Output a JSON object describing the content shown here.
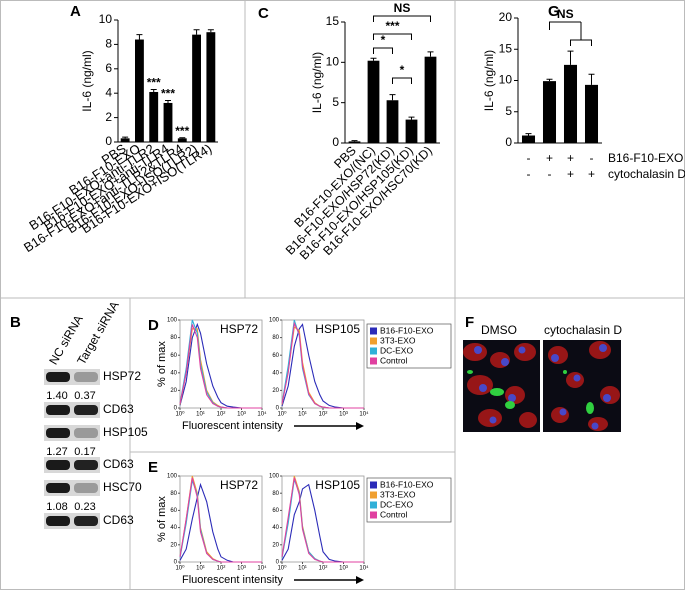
{
  "chart_data": [
    {
      "type": "bar",
      "panel": "A",
      "ylabel": "IL-6 (ng/ml)",
      "categories": [
        "PBS",
        "B16-F10-EXO",
        "B16-F10-EXO+anti-TLR2",
        "B16-F10-EXO+anti-TLR4",
        "B16-F10-EXO+anti-TLR2&TLR4",
        "B16-F10-EXO+ISO(TLR2)",
        "B16-F10-EXO+ISO(TLR4)"
      ],
      "values": [
        0.3,
        8.4,
        4.1,
        3.2,
        0.3,
        8.8,
        9.0
      ],
      "errors": [
        0.1,
        0.4,
        0.2,
        0.2,
        0.05,
        0.4,
        0.2
      ],
      "ylim": [
        0,
        10
      ],
      "yticks": [
        0,
        2,
        4,
        6,
        8,
        10
      ],
      "color": "#000000",
      "annotations": [
        {
          "text": "***",
          "index": 2
        },
        {
          "text": "***",
          "index": 3
        },
        {
          "text": "***",
          "index": 4
        }
      ]
    },
    {
      "type": "bar",
      "panel": "C",
      "ylabel": "IL-6 (ng/ml)",
      "categories": [
        "PBS",
        "B16-F10-EXO/(NC)",
        "B16-F10-EXO/HSP72(KD)",
        "B16-F10-EXO/HSP105(KD)",
        "B16-F10-EXO/HSC70(KD)"
      ],
      "values": [
        0.2,
        10.2,
        5.3,
        2.9,
        10.7
      ],
      "errors": [
        0.1,
        0.3,
        0.7,
        0.3,
        0.6
      ],
      "ylim": [
        0,
        15
      ],
      "yticks": [
        0,
        5,
        10,
        15
      ],
      "color": "#000000",
      "brackets": [
        {
          "from": 1,
          "to": 4,
          "label": "NS"
        },
        {
          "from": 1,
          "to": 3,
          "label": "***"
        },
        {
          "from": 1,
          "to": 2,
          "label": "*"
        },
        {
          "from": 2,
          "to": 3,
          "label": "*"
        }
      ]
    },
    {
      "type": "bar",
      "panel": "G",
      "ylabel": "IL-6 (ng/ml)",
      "values": [
        1.2,
        9.9,
        12.5,
        9.3
      ],
      "errors": [
        0.3,
        0.3,
        2.2,
        1.7
      ],
      "ylim": [
        0,
        20
      ],
      "yticks": [
        0,
        5,
        10,
        15,
        20
      ],
      "color": "#000000",
      "brackets": [
        {
          "from": 1,
          "to": [
            2,
            3
          ],
          "label": "NS"
        }
      ],
      "conditions": [
        {
          "label": "B16-F10-EXO",
          "signs": [
            "-",
            "+",
            "+",
            "-"
          ]
        },
        {
          "label": "cytochalasin D",
          "signs": [
            "-",
            "-",
            "+",
            "+"
          ]
        }
      ]
    },
    {
      "type": "flow",
      "panel": "D",
      "ylabel": "% of max",
      "xlabel": "Fluorescent intensity",
      "x": [
        1,
        2,
        4,
        7,
        10,
        20,
        40,
        70,
        100,
        200,
        400,
        1000,
        10000
      ],
      "xlim": [
        1,
        10000
      ],
      "log_x": true,
      "xticks": [
        {
          "value": 1,
          "label": "10⁰"
        },
        {
          "value": 10,
          "label": "10¹"
        },
        {
          "value": 100,
          "label": "10²"
        },
        {
          "value": 1000,
          "label": "10³"
        },
        {
          "value": 10000,
          "label": "10⁴"
        }
      ],
      "ylim": [
        0,
        100
      ],
      "yticks": [
        0,
        20,
        40,
        60,
        80,
        100
      ],
      "series": [
        {
          "name": "B16-F10-EXO",
          "color": "#2b2bb8"
        },
        {
          "name": "3T3-EXO",
          "color": "#f0a030"
        },
        {
          "name": "DC-EXO",
          "color": "#30b0d8"
        },
        {
          "name": "Control",
          "color": "#e040a0"
        }
      ],
      "subplots": [
        {
          "title": "HSP72",
          "values": [
            [
              3,
              30,
              80,
              95,
              85,
              50,
              25,
              12,
              6,
              2,
              1,
              0,
              0
            ],
            [
              4,
              40,
              90,
              90,
              55,
              20,
              7,
              3,
              1,
              0,
              0,
              0,
              0
            ],
            [
              5,
              45,
              100,
              85,
              50,
              18,
              6,
              2,
              1,
              0,
              0,
              0,
              0
            ],
            [
              5,
              40,
              95,
              80,
              45,
              15,
              5,
              2,
              1,
              0,
              0,
              0,
              0
            ]
          ]
        },
        {
          "title": "HSP105",
          "values": [
            [
              2,
              25,
              70,
              90,
              95,
              60,
              30,
              15,
              8,
              3,
              1,
              0,
              0
            ],
            [
              4,
              42,
              92,
              88,
              52,
              18,
              6,
              2,
              1,
              0,
              0,
              0,
              0
            ],
            [
              5,
              48,
              100,
              82,
              45,
              15,
              5,
              2,
              1,
              0,
              0,
              0,
              0
            ],
            [
              5,
              40,
              96,
              84,
              48,
              16,
              5,
              2,
              1,
              0,
              0,
              0,
              0
            ]
          ]
        }
      ]
    },
    {
      "type": "flow",
      "panel": "E",
      "ylabel": "% of max",
      "xlabel": "Fluorescent intensity",
      "x": [
        1,
        2,
        4,
        7,
        10,
        20,
        40,
        70,
        100,
        200,
        400,
        1000,
        10000
      ],
      "xlim": [
        1,
        10000
      ],
      "log_x": true,
      "xticks": [
        {
          "value": 1,
          "label": "10⁰"
        },
        {
          "value": 10,
          "label": "10¹"
        },
        {
          "value": 100,
          "label": "10²"
        },
        {
          "value": 1000,
          "label": "10³"
        },
        {
          "value": 10000,
          "label": "10⁴"
        }
      ],
      "ylim": [
        0,
        100
      ],
      "yticks": [
        0,
        20,
        40,
        60,
        80,
        100
      ],
      "series": [
        {
          "name": "B16-F10-EXO",
          "color": "#2b2bb8"
        },
        {
          "name": "3T3-EXO",
          "color": "#f0a030"
        },
        {
          "name": "DC-EXO",
          "color": "#30b0d8"
        },
        {
          "name": "Control",
          "color": "#e040a0"
        }
      ],
      "subplots": [
        {
          "title": "HSP72",
          "values": [
            [
              2,
              15,
              50,
              75,
              90,
              70,
              35,
              15,
              6,
              2,
              0,
              0,
              0
            ],
            [
              5,
              50,
              100,
              80,
              40,
              12,
              4,
              1,
              0,
              0,
              0,
              0,
              0
            ],
            [
              5,
              45,
              95,
              78,
              38,
              10,
              3,
              1,
              0,
              0,
              0,
              0,
              0
            ],
            [
              6,
              50,
              98,
              75,
              35,
              10,
              3,
              1,
              0,
              0,
              0,
              0,
              0
            ]
          ]
        },
        {
          "title": "HSP105",
          "values": [
            [
              2,
              15,
              55,
              70,
              85,
              90,
              60,
              30,
              12,
              3,
              1,
              0,
              0
            ],
            [
              5,
              48,
              100,
              82,
              42,
              12,
              4,
              1,
              0,
              0,
              0,
              0,
              0
            ],
            [
              5,
              45,
              96,
              80,
              40,
              12,
              4,
              1,
              0,
              0,
              0,
              0,
              0
            ],
            [
              6,
              52,
              98,
              78,
              38,
              10,
              3,
              1,
              0,
              0,
              0,
              0,
              0
            ]
          ]
        }
      ]
    }
  ],
  "blot": {
    "panel": "B",
    "columns": [
      "NC siRNA",
      "Target siRNA"
    ],
    "rows": [
      {
        "label": "HSP72",
        "ratios": [
          "1.40",
          "0.37"
        ]
      },
      {
        "label": "CD63"
      },
      {
        "label": "HSP105",
        "ratios": [
          "1.27",
          "0.17"
        ]
      },
      {
        "label": "CD63"
      },
      {
        "label": "HSC70",
        "ratios": [
          "1.08",
          "0.23"
        ]
      },
      {
        "label": "CD63"
      }
    ]
  },
  "images": {
    "panel": "F",
    "labels": [
      "DMSO",
      "cytochalasin D"
    ]
  }
}
